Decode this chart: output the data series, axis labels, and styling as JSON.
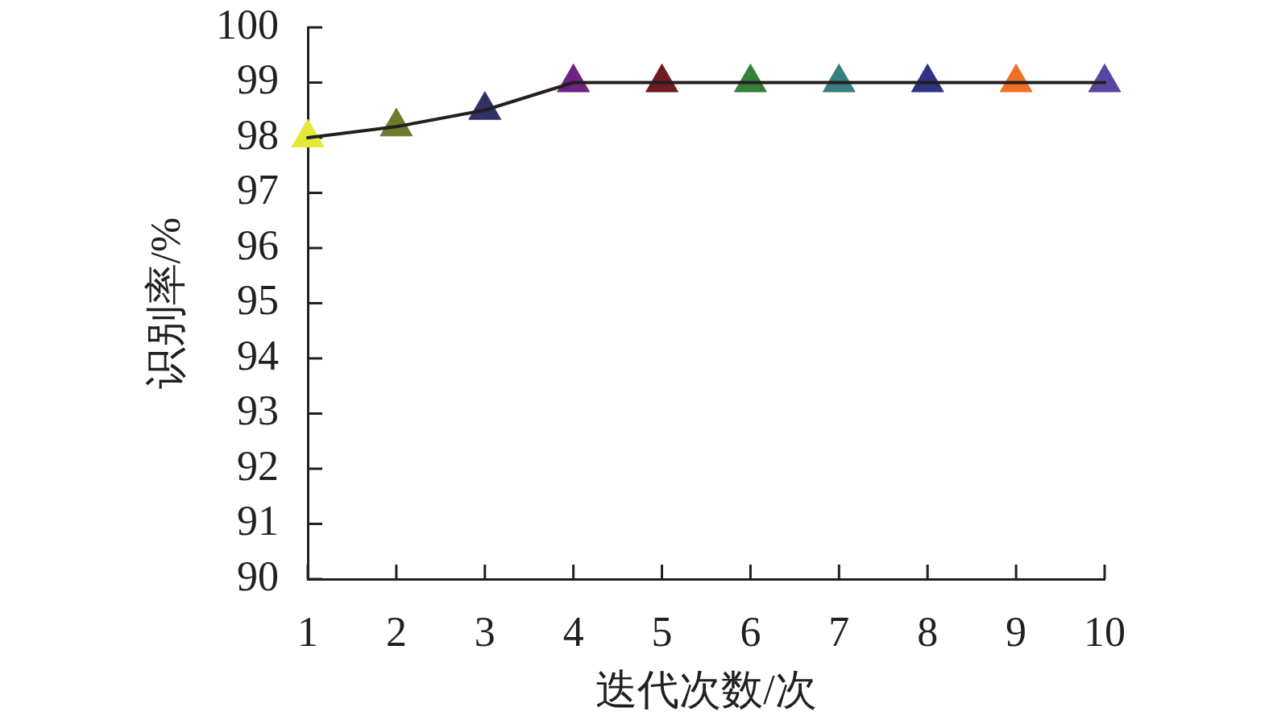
{
  "chart_data": {
    "type": "line",
    "xlabel": "迭代次数/次",
    "ylabel": "识别率/%",
    "x": [
      1,
      2,
      3,
      4,
      5,
      6,
      7,
      8,
      9,
      10
    ],
    "values": [
      98.0,
      98.2,
      98.5,
      99,
      99,
      99,
      99,
      99,
      99,
      99
    ],
    "color": "#231f20",
    "colors": [
      "#e4e838",
      "#6e7a2c",
      "#2e3264",
      "#6e2282",
      "#6e1c22",
      "#35803a",
      "#377e7e",
      "#2d3582",
      "#f07028",
      "#5a46a0"
    ],
    "marker": "triangle",
    "line_style": "solid",
    "grid": false,
    "legend": false,
    "xlim": [
      1,
      10
    ],
    "xticks": [
      1,
      2,
      3,
      4,
      5,
      6,
      7,
      8,
      9,
      10
    ],
    "ylim": [
      90,
      100
    ],
    "yticks": [
      90,
      91,
      92,
      93,
      94,
      95,
      96,
      97,
      98,
      99,
      100
    ]
  }
}
